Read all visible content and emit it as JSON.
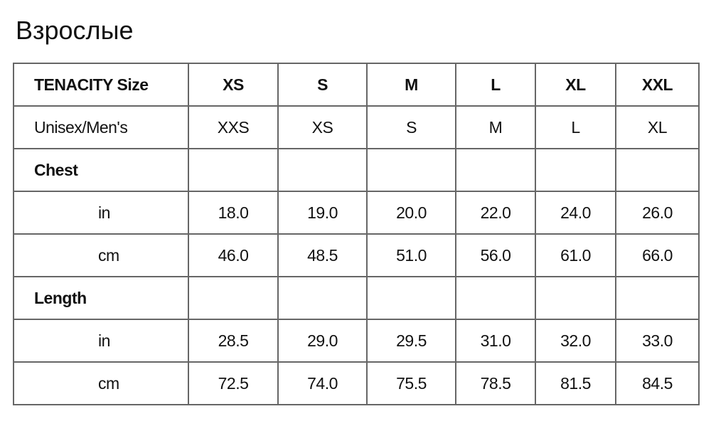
{
  "title": "Взрослые",
  "table": {
    "header": [
      "TENACITY Size",
      "XS",
      "S",
      "M",
      "L",
      "XL",
      "XXL"
    ],
    "unisex": [
      "Unisex/Men's",
      "XXS",
      "XS",
      "S",
      "M",
      "L",
      "XL"
    ],
    "chest": {
      "label": "Chest",
      "in": [
        "in",
        "18.0",
        "19.0",
        "20.0",
        "22.0",
        "24.0",
        "26.0"
      ],
      "cm": [
        "cm",
        "46.0",
        "48.5",
        "51.0",
        "56.0",
        "61.0",
        "66.0"
      ]
    },
    "length": {
      "label": "Length",
      "in": [
        "in",
        "28.5",
        "29.0",
        "29.5",
        "31.0",
        "32.0",
        "33.0"
      ],
      "cm": [
        "cm",
        "72.5",
        "74.0",
        "75.5",
        "78.5",
        "81.5",
        "84.5"
      ]
    }
  }
}
